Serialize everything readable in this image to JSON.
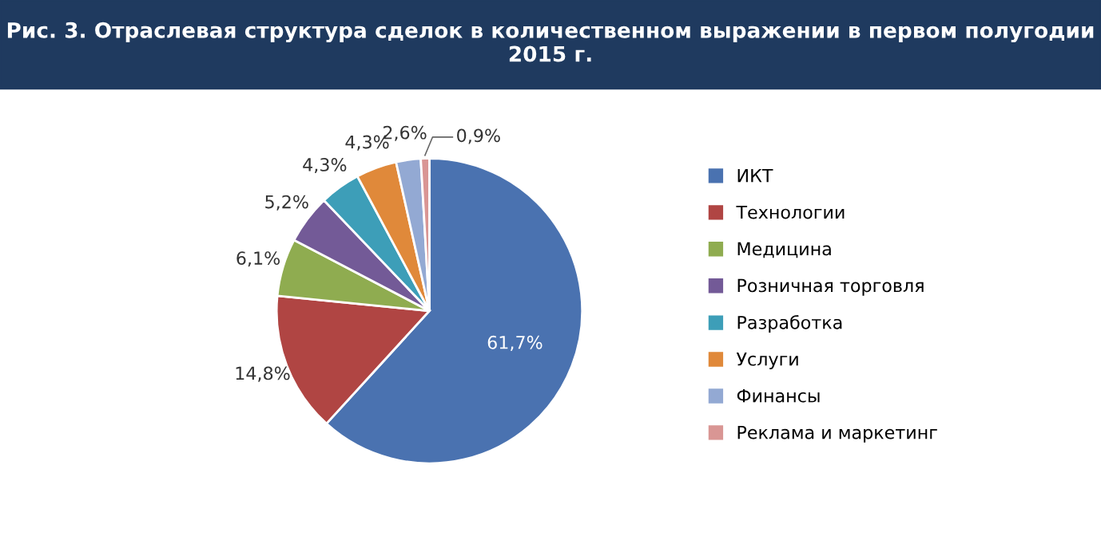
{
  "chart_data": {
    "type": "pie",
    "title": "Рис. 3. Отраслевая структура сделок в количественном выражении в первом полугодии 2015 г.",
    "categories": [
      "ИКТ",
      "Технологии",
      "Медицина",
      "Розничная торговля",
      "Разработка",
      "Услуги",
      "Финансы",
      "Реклама и маркетинг"
    ],
    "values": [
      61.7,
      14.8,
      6.1,
      5.2,
      4.3,
      4.3,
      2.6,
      0.9
    ],
    "value_labels": [
      "61,7%",
      "14,8%",
      "6,1%",
      "5,2%",
      "4,3%",
      "4,3%",
      "2,6%",
      "0,9%"
    ],
    "colors": [
      "#4a72b0",
      "#b04543",
      "#8fac50",
      "#735a97",
      "#3d9eb8",
      "#e0893a",
      "#93a9d3",
      "#d99694"
    ],
    "legend": "right"
  }
}
